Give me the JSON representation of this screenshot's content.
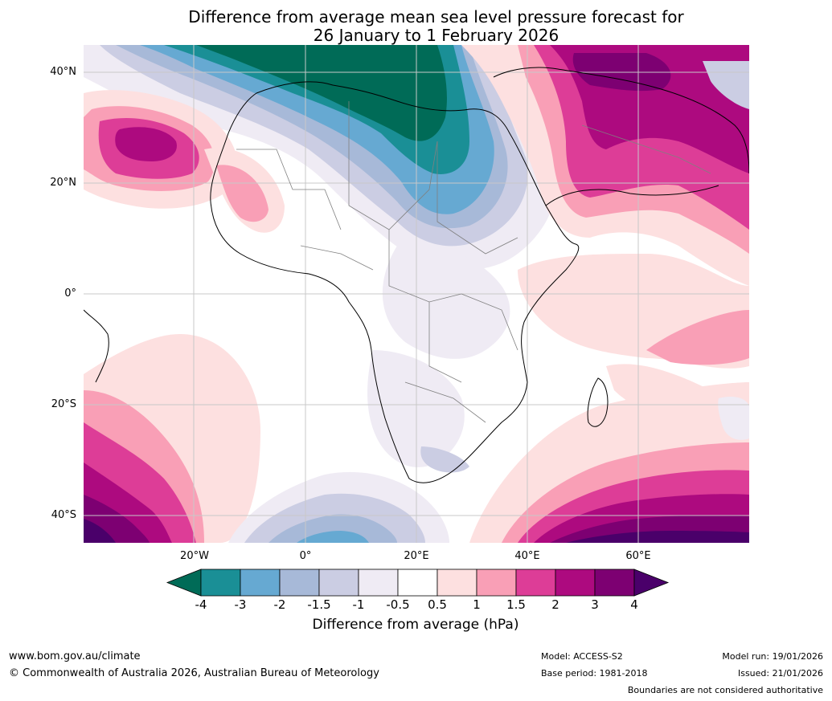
{
  "title": {
    "line1": "Difference from average mean sea level pressure forecast for",
    "line2": "26 January to 1 February 2026"
  },
  "map": {
    "lat_labels": [
      "40°N",
      "20°N",
      "0°",
      "20°S",
      "40°S"
    ],
    "lon_labels": [
      "20°W",
      "0°",
      "20°E",
      "40°E",
      "60°E"
    ]
  },
  "colorbar": {
    "tick_labels": [
      "-4",
      "-3",
      "-2",
      "-1.5",
      "-1",
      "-0.5",
      "0.5",
      "1",
      "1.5",
      "2",
      "3",
      "4"
    ],
    "colors": [
      "#006b57",
      "#1a8f96",
      "#66a9d2",
      "#a7b9d8",
      "#cbcde3",
      "#efebf4",
      "#ffffff",
      "#fde0e0",
      "#f99fb6",
      "#dd3d97",
      "#ad0a7f",
      "#7d0072",
      "#4a006a"
    ],
    "label": "Difference from average (hPa)"
  },
  "footer": {
    "website": "www.bom.gov.au/climate",
    "copyright": "© Commonwealth of Australia 2026, Australian Bureau of Meteorology",
    "model": "Model: ACCESS-S2",
    "base_period": "Base period: 1981-2018",
    "model_run": "Model run: 19/01/2026",
    "issued": "Issued: 21/01/2026",
    "disclaimer": "Boundaries are not considered authoritative"
  }
}
